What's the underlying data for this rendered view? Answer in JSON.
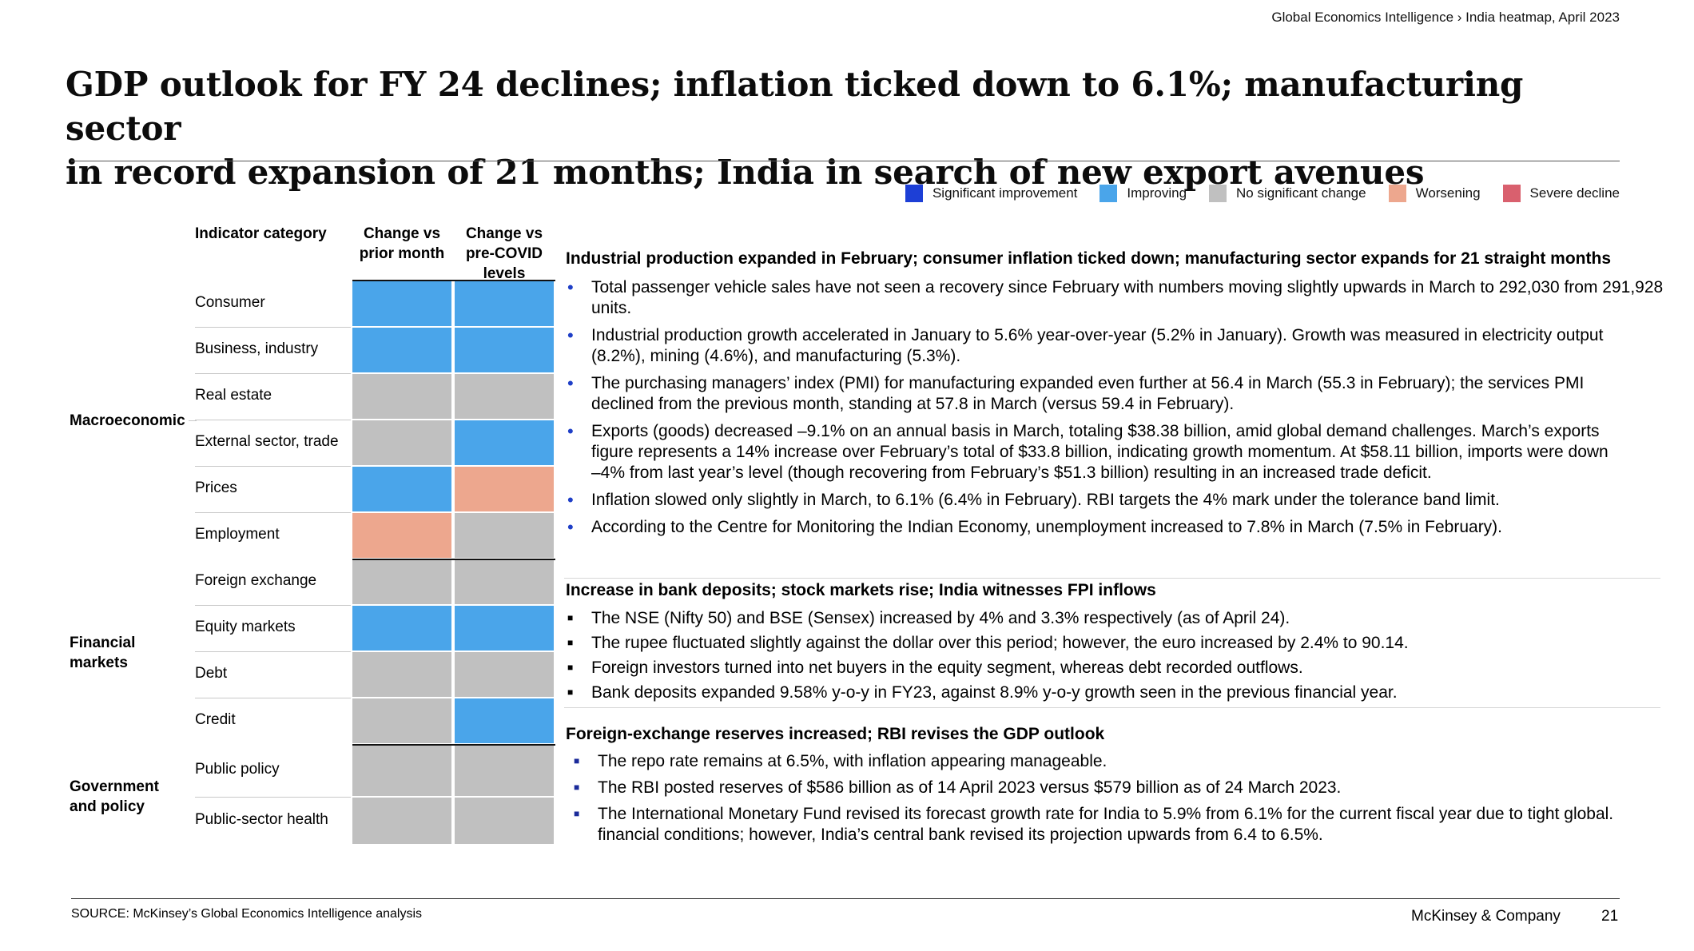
{
  "breadcrumb": "Global Economics Intelligence › India heatmap, April 2023",
  "title_line1": "GDP outlook for FY 24 declines; inflation ticked down to 6.1%; manufacturing sector",
  "title_line2": "in record expansion of 21 months; India in search of new export avenues",
  "colors": {
    "significant_improvement": "#1d3fd6",
    "improving": "#4aa5ea",
    "no_change": "#c0c0c0",
    "worsening": "#eda78e",
    "severe_decline": "#d9606e"
  },
  "legend": [
    {
      "label": "Significant improvement",
      "color": "#1d3fd6"
    },
    {
      "label": "Improving",
      "color": "#4aa5ea"
    },
    {
      "label": "No significant change",
      "color": "#c0c0c0"
    },
    {
      "label": "Worsening",
      "color": "#eda78e"
    },
    {
      "label": "Severe decline",
      "color": "#d9606e"
    }
  ],
  "table": {
    "header_category": "Indicator category",
    "header_prior_1": "Change vs",
    "header_prior_2": "prior month",
    "header_covid_1": "Change vs",
    "header_covid_2": "pre-COVID",
    "header_covid_3": "levels",
    "groups": {
      "macro": "Macroeconomic",
      "fin_1": "Financial",
      "fin_2": "markets",
      "gov_1": "Government",
      "gov_2": "and policy"
    },
    "rows": [
      {
        "label": "Consumer",
        "prior": "Improving",
        "covid": "Improving"
      },
      {
        "label": "Business, industry",
        "prior": "Improving",
        "covid": "Improving"
      },
      {
        "label": "Real estate",
        "prior": "No significant change",
        "covid": "No significant change"
      },
      {
        "label": "External sector, trade",
        "prior": "No significant change",
        "covid": "Improving"
      },
      {
        "label": "Prices",
        "prior": "Improving",
        "covid": "Worsening"
      },
      {
        "label": "Employment",
        "prior": "Worsening",
        "covid": "No significant change"
      },
      {
        "label": "Foreign exchange",
        "prior": "No significant change",
        "covid": "No significant change"
      },
      {
        "label": "Equity markets",
        "prior": "Improving",
        "covid": "Improving"
      },
      {
        "label": "Debt",
        "prior": "No significant change",
        "covid": "No significant change"
      },
      {
        "label": "Credit",
        "prior": "No significant change",
        "covid": "Improving"
      },
      {
        "label": "Public policy",
        "prior": "No significant change",
        "covid": "No significant change"
      },
      {
        "label": "Public-sector health",
        "prior": "No significant change",
        "covid": "No significant change"
      }
    ]
  },
  "sections": {
    "macro": {
      "heading": "Industrial production expanded in February; consumer inflation ticked down; manufacturing sector expands for 21 straight months",
      "b1_l1": "Total passenger vehicle sales have not seen a recovery since February with numbers moving slightly upwards in March to 292,030 from 291,928",
      "b1_l2": "units.",
      "b2_l1": "Industrial production growth accelerated in January to 5.6% year-over-year (5.2% in January). Growth was measured in electricity output",
      "b2_l2": "(8.2%), mining (4.6%), and manufacturing (5.3%).",
      "b3_l1": "The purchasing managers’ index (PMI) for manufacturing expanded even further at 56.4 in March (55.3 in February); the services PMI",
      "b3_l2": "declined from the previous month, standing at 57.8 in March (versus 59.4 in February).",
      "b4_l1": "Exports (goods) decreased –9.1% on an annual basis in March, totaling $38.38 billion, amid global demand challenges. March’s exports",
      "b4_l2": "figure represents a 14% increase over February’s total of $33.8 billion, indicating growth momentum. At $58.11 billion, imports were down",
      "b4_l3": "–4% from last year’s level (though recovering from February’s  $51.3 billion) resulting in an increased trade deficit.",
      "b5_l1": "Inflation slowed only slightly in March, to 6.1% (6.4% in February). RBI targets the 4% mark under the tolerance band limit.",
      "b6_l1": "According to the Centre for Monitoring the Indian Economy, unemployment increased to 7.8% in March (7.5% in February)."
    },
    "financial": {
      "heading": "Increase in bank deposits; stock markets rise; India witnesses FPI inflows",
      "b1": "The NSE (Nifty 50) and BSE (Sensex) increased by 4% and 3.3% respectively (as of April 24).",
      "b2": "The rupee fluctuated slightly against the dollar over this period; however, the euro increased by 2.4% to 90.14.",
      "b3": "Foreign investors turned into net buyers in the equity segment, whereas debt recorded outflows.",
      "b4": "Bank deposits expanded 9.58% y-o-y in FY23, against 8.9% y-o-y growth seen in the previous financial year."
    },
    "government": {
      "heading": "Foreign-exchange reserves increased; RBI revises the GDP outlook",
      "b1": "The repo rate remains at 6.5%, with inflation appearing manageable.",
      "b2": "The RBI posted reserves of $586 billion as of 14 April 2023 versus $579 billion as of 24 March 2023.",
      "b3_l1": "The International Monetary Fund revised its forecast growth rate for India to 5.9% from 6.1% for the current fiscal year due to tight global.",
      "b3_l2": "financial conditions; however, India’s central bank revised its projection upwards from 6.4 to 6.5%."
    }
  },
  "footer": {
    "source": "SOURCE: McKinsey’s Global Economics Intelligence analysis",
    "company": "McKinsey & Company",
    "page": "21"
  }
}
